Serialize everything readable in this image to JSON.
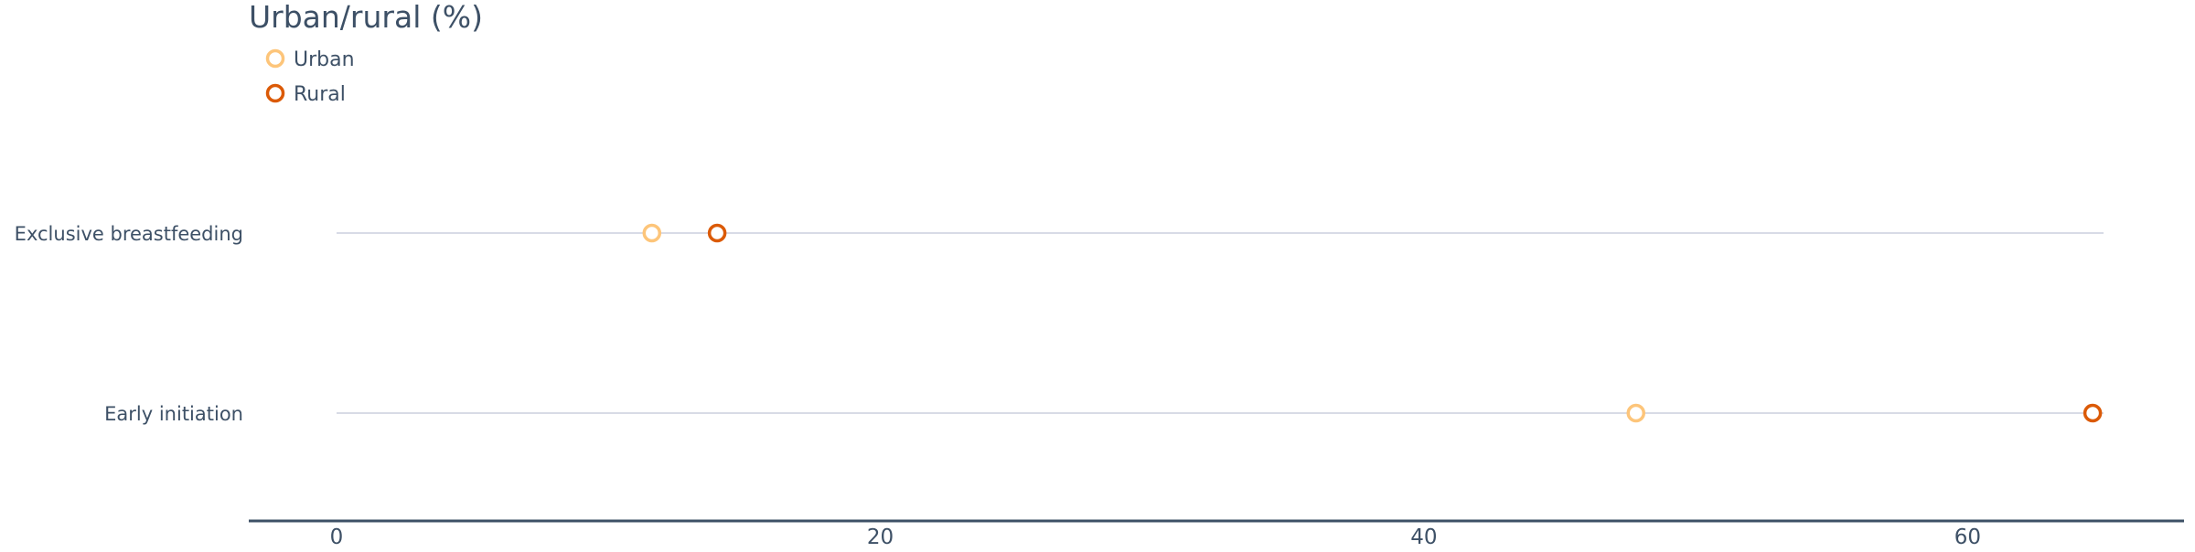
{
  "chart_data": {
    "type": "dot",
    "title": "Urban/rural (%)",
    "categories": [
      "Exclusive breastfeeding",
      "Early initiation"
    ],
    "series": [
      {
        "name": "Urban",
        "values": [
          11.6,
          47.8
        ],
        "color": "#fdc57a"
      },
      {
        "name": "Rural",
        "values": [
          14.0,
          64.6
        ],
        "color": "#db5a07"
      }
    ],
    "xlim": [
      0,
      65
    ],
    "xticks": [
      0,
      20,
      40,
      60
    ],
    "grid": false,
    "legend_position": "top-left",
    "xlabel": "",
    "ylabel": ""
  },
  "colors": {
    "text": "#3d5066",
    "axis": "#3d5066",
    "track": "#d8dbe6"
  }
}
